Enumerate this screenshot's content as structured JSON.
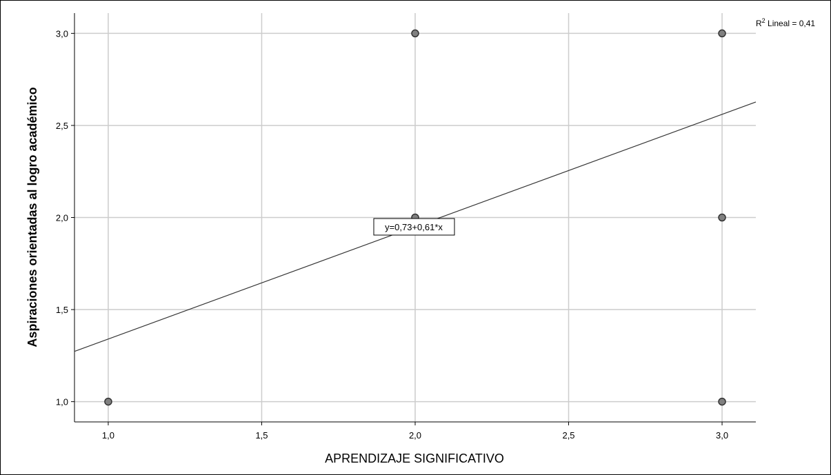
{
  "chart_data": {
    "type": "scatter",
    "xlabel": "APRENDIZAJE SIGNIFICATIVO",
    "ylabel": "Aspiraciones orientadas al logro académico",
    "xlim": [
      0.89,
      3.11
    ],
    "ylim": [
      0.89,
      3.11
    ],
    "x_ticks": [
      "1,0",
      "1,5",
      "2,0",
      "2,5",
      "3,0"
    ],
    "y_ticks": [
      "1,0",
      "1,5",
      "2,0",
      "2,5",
      "3,0"
    ],
    "grid": true,
    "points": [
      {
        "x": 1.0,
        "y": 1.0
      },
      {
        "x": 2.0,
        "y": 3.0
      },
      {
        "x": 2.0,
        "y": 2.0
      },
      {
        "x": 3.0,
        "y": 3.0
      },
      {
        "x": 3.0,
        "y": 2.0
      },
      {
        "x": 3.0,
        "y": 1.0
      }
    ],
    "fit_line": {
      "intercept": 0.73,
      "slope": 0.61
    },
    "equation_label": "y=0,73+0,61*x",
    "r2_label": {
      "prefix": "R",
      "sup": "2",
      "text": " Lineal = 0,41"
    },
    "colors": {
      "point_fill": "#808080",
      "point_stroke": "#333333",
      "grid": "#cccccc",
      "line": "#333333"
    }
  }
}
